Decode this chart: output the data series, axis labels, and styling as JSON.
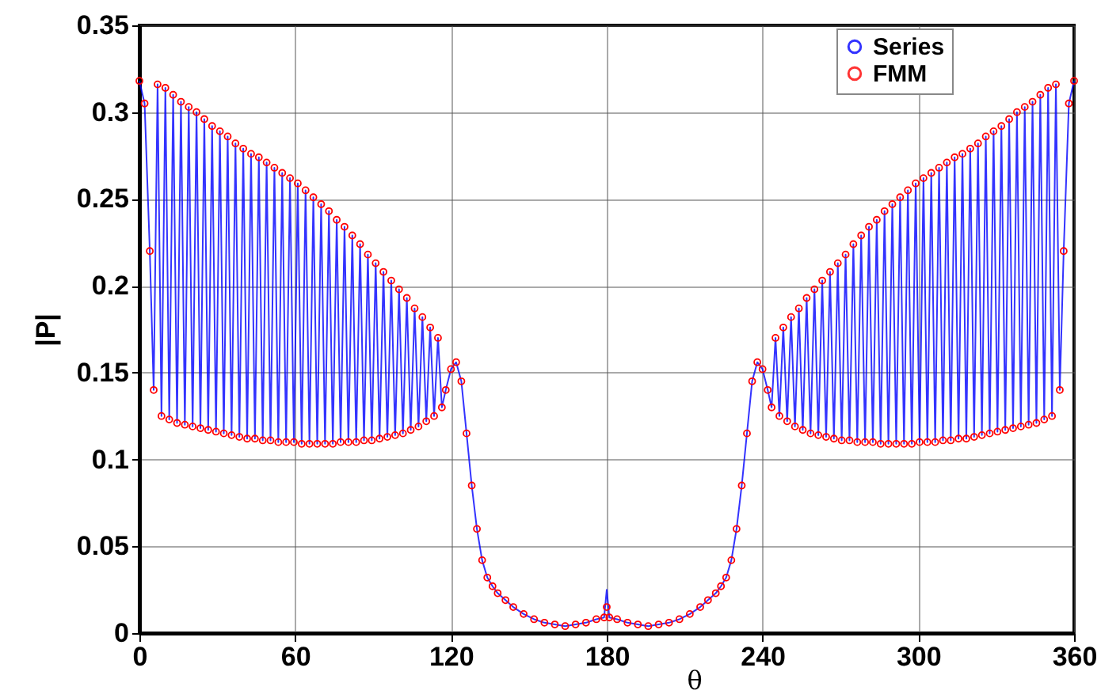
{
  "chart_data": {
    "type": "line",
    "xlabel": "θ",
    "ylabel": "|P|",
    "xlim": [
      0,
      360
    ],
    "ylim": [
      0,
      0.35
    ],
    "xticks": [
      0,
      60,
      120,
      180,
      240,
      300,
      360
    ],
    "yticks": [
      0,
      0.05,
      0.1,
      0.15,
      0.2,
      0.25,
      0.3,
      0.35
    ],
    "grid": true,
    "legend": "top right",
    "x": [
      0,
      2,
      4,
      5.5,
      7,
      8.5,
      10,
      11.5,
      13,
      14.5,
      16,
      17.5,
      19,
      20.5,
      22,
      23.5,
      25,
      26.5,
      28,
      29.5,
      31,
      32.5,
      34,
      35.5,
      37,
      38.5,
      40,
      41.5,
      43,
      44.5,
      46,
      47.5,
      49,
      50.5,
      52,
      53.5,
      55,
      56.5,
      58,
      59.5,
      61,
      62.5,
      64,
      65.5,
      67,
      68.5,
      70,
      71.5,
      73,
      74.5,
      76,
      77.5,
      79,
      80.5,
      82,
      83.5,
      85,
      86.5,
      88,
      89.5,
      91,
      92.5,
      94,
      95.5,
      97,
      98.5,
      100,
      101.5,
      103,
      104.5,
      106,
      107.5,
      109,
      110.5,
      112,
      113.5,
      115,
      116.5,
      118,
      120,
      122,
      124,
      126,
      128,
      130,
      132,
      134,
      136,
      138,
      141,
      144,
      148,
      152,
      156,
      160,
      164,
      168,
      172,
      176,
      179,
      180,
      181,
      184,
      188,
      192,
      196,
      200,
      204,
      208,
      212,
      216,
      219,
      222,
      224,
      226,
      228,
      230,
      232,
      234,
      236,
      238,
      240,
      242,
      243.5,
      245,
      246.5,
      248,
      249.5,
      251,
      252.5,
      254,
      255.5,
      257,
      258.5,
      260,
      261.5,
      263,
      264.5,
      266,
      267.5,
      269,
      270.5,
      272,
      273.5,
      275,
      276.5,
      278,
      279.5,
      281,
      282.5,
      284,
      285.5,
      287,
      288.5,
      290,
      291.5,
      293,
      294.5,
      296,
      297.5,
      299,
      300.5,
      302,
      303.5,
      305,
      306.5,
      308,
      309.5,
      311,
      312.5,
      314,
      315.5,
      317,
      318.5,
      320,
      321.5,
      323,
      324.5,
      326,
      327.5,
      329,
      330.5,
      332,
      333.5,
      335,
      336.5,
      338,
      339.5,
      341,
      342.5,
      344,
      345.5,
      347,
      348.5,
      350,
      351.5,
      353,
      354.5,
      356,
      358,
      360
    ],
    "series": [
      {
        "name": "Series",
        "color": "#0000ff",
        "marker": "none",
        "values": [
          0.318,
          0.305,
          0.22,
          0.14,
          0.316,
          0.125,
          0.314,
          0.123,
          0.31,
          0.121,
          0.306,
          0.12,
          0.303,
          0.119,
          0.3,
          0.118,
          0.296,
          0.117,
          0.292,
          0.116,
          0.289,
          0.115,
          0.286,
          0.114,
          0.282,
          0.113,
          0.279,
          0.112,
          0.276,
          0.112,
          0.274,
          0.111,
          0.271,
          0.111,
          0.268,
          0.11,
          0.265,
          0.11,
          0.262,
          0.11,
          0.259,
          0.109,
          0.255,
          0.109,
          0.251,
          0.109,
          0.247,
          0.109,
          0.243,
          0.109,
          0.238,
          0.11,
          0.234,
          0.11,
          0.229,
          0.11,
          0.224,
          0.111,
          0.218,
          0.111,
          0.213,
          0.112,
          0.208,
          0.113,
          0.203,
          0.114,
          0.198,
          0.115,
          0.193,
          0.117,
          0.187,
          0.119,
          0.182,
          0.122,
          0.176,
          0.125,
          0.17,
          0.13,
          0.14,
          0.152,
          0.156,
          0.145,
          0.115,
          0.085,
          0.06,
          0.042,
          0.032,
          0.027,
          0.023,
          0.019,
          0.015,
          0.011,
          0.008,
          0.006,
          0.005,
          0.004,
          0.005,
          0.006,
          0.008,
          0.009,
          0.025,
          0.009,
          0.008,
          0.006,
          0.005,
          0.004,
          0.005,
          0.006,
          0.008,
          0.011,
          0.015,
          0.019,
          0.023,
          0.027,
          0.032,
          0.042,
          0.06,
          0.085,
          0.115,
          0.145,
          0.156,
          0.152,
          0.14,
          0.13,
          0.17,
          0.125,
          0.176,
          0.122,
          0.182,
          0.119,
          0.187,
          0.117,
          0.193,
          0.115,
          0.198,
          0.114,
          0.203,
          0.113,
          0.208,
          0.112,
          0.213,
          0.111,
          0.218,
          0.111,
          0.224,
          0.11,
          0.229,
          0.11,
          0.234,
          0.11,
          0.238,
          0.109,
          0.243,
          0.109,
          0.247,
          0.109,
          0.251,
          0.109,
          0.255,
          0.109,
          0.259,
          0.11,
          0.262,
          0.11,
          0.265,
          0.11,
          0.268,
          0.111,
          0.271,
          0.111,
          0.274,
          0.112,
          0.276,
          0.112,
          0.279,
          0.113,
          0.282,
          0.114,
          0.286,
          0.115,
          0.289,
          0.116,
          0.292,
          0.117,
          0.296,
          0.118,
          0.3,
          0.119,
          0.303,
          0.12,
          0.306,
          0.121,
          0.31,
          0.123,
          0.314,
          0.125,
          0.316,
          0.14,
          0.22,
          0.305,
          0.318
        ]
      },
      {
        "name": "FMM",
        "type": "scatter",
        "color": "#ff0000",
        "marker": "circle",
        "values": [
          0.318,
          0.305,
          0.22,
          0.14,
          0.316,
          0.125,
          0.314,
          0.123,
          0.31,
          0.121,
          0.306,
          0.12,
          0.303,
          0.119,
          0.3,
          0.118,
          0.296,
          0.117,
          0.292,
          0.116,
          0.289,
          0.115,
          0.286,
          0.114,
          0.282,
          0.113,
          0.279,
          0.112,
          0.276,
          0.112,
          0.274,
          0.111,
          0.271,
          0.111,
          0.268,
          0.11,
          0.265,
          0.11,
          0.262,
          0.11,
          0.259,
          0.109,
          0.255,
          0.109,
          0.251,
          0.109,
          0.247,
          0.109,
          0.243,
          0.109,
          0.238,
          0.11,
          0.234,
          0.11,
          0.229,
          0.11,
          0.224,
          0.111,
          0.218,
          0.111,
          0.213,
          0.112,
          0.208,
          0.113,
          0.203,
          0.114,
          0.198,
          0.115,
          0.193,
          0.117,
          0.187,
          0.119,
          0.182,
          0.122,
          0.176,
          0.125,
          0.17,
          0.13,
          0.14,
          0.152,
          0.156,
          0.145,
          0.115,
          0.085,
          0.06,
          0.042,
          0.032,
          0.027,
          0.023,
          0.019,
          0.015,
          0.011,
          0.008,
          0.006,
          0.005,
          0.004,
          0.005,
          0.006,
          0.008,
          0.009,
          0.015,
          0.009,
          0.008,
          0.006,
          0.005,
          0.004,
          0.005,
          0.006,
          0.008,
          0.011,
          0.015,
          0.019,
          0.023,
          0.027,
          0.032,
          0.042,
          0.06,
          0.085,
          0.115,
          0.145,
          0.156,
          0.152,
          0.14,
          0.13,
          0.17,
          0.125,
          0.176,
          0.122,
          0.182,
          0.119,
          0.187,
          0.117,
          0.193,
          0.115,
          0.198,
          0.114,
          0.203,
          0.113,
          0.208,
          0.112,
          0.213,
          0.111,
          0.218,
          0.111,
          0.224,
          0.11,
          0.229,
          0.11,
          0.234,
          0.11,
          0.238,
          0.109,
          0.243,
          0.109,
          0.247,
          0.109,
          0.251,
          0.109,
          0.255,
          0.109,
          0.259,
          0.11,
          0.262,
          0.11,
          0.265,
          0.11,
          0.268,
          0.111,
          0.271,
          0.111,
          0.274,
          0.112,
          0.276,
          0.112,
          0.279,
          0.113,
          0.282,
          0.114,
          0.286,
          0.115,
          0.289,
          0.116,
          0.292,
          0.117,
          0.296,
          0.118,
          0.3,
          0.119,
          0.303,
          0.12,
          0.306,
          0.121,
          0.31,
          0.123,
          0.314,
          0.125,
          0.316,
          0.14,
          0.22,
          0.305,
          0.318
        ]
      }
    ]
  }
}
